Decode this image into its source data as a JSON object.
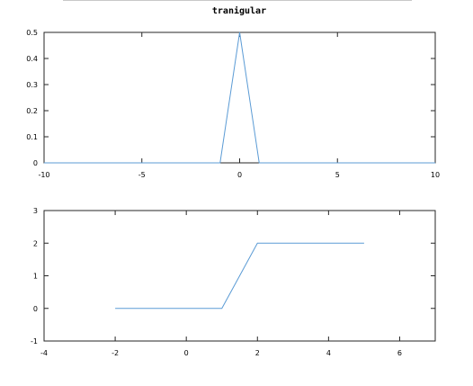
{
  "chart_data": [
    {
      "type": "line",
      "title": "tranigular",
      "xlabel": "",
      "ylabel": "",
      "xlim": [
        -10,
        10
      ],
      "ylim": [
        0,
        0.5
      ],
      "x_ticks": [
        -10,
        -5,
        0,
        5,
        10
      ],
      "y_ticks": [
        0,
        0.1,
        0.2,
        0.3,
        0.4,
        0.5
      ],
      "grid": false,
      "series": [
        {
          "color": "#5b9bd5",
          "x": [
            -10,
            -1,
            0,
            1,
            10
          ],
          "y": [
            0,
            0,
            0.5,
            0,
            0
          ]
        }
      ]
    },
    {
      "type": "line",
      "title": "",
      "xlabel": "",
      "ylabel": "",
      "xlim": [
        -4,
        7
      ],
      "ylim": [
        -1,
        3
      ],
      "x_ticks": [
        -4,
        -2,
        0,
        2,
        4,
        6
      ],
      "y_ticks": [
        -1,
        0,
        1,
        2,
        3
      ],
      "grid": false,
      "series": [
        {
          "color": "#5b9bd5",
          "x": [
            -2,
            1,
            2,
            5
          ],
          "y": [
            0,
            0,
            2,
            2
          ]
        }
      ]
    }
  ]
}
